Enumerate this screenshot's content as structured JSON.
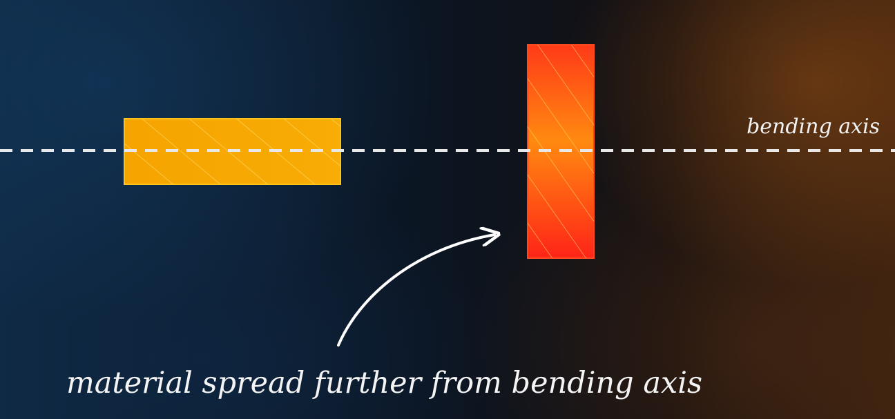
{
  "labels": {
    "axis": "bending axis",
    "caption": "material spread further from bending axis"
  },
  "colors": {
    "axis_line": "#e8e8e8",
    "flat_beam_fill": "#f7a500",
    "flat_beam_stroke": "#ffc21a",
    "upright_beam_top": "#ff7a10",
    "upright_beam_bottom": "#ff2a1a",
    "upright_beam_stroke": "#ff4a20",
    "hatch": "#ffe27a",
    "arrow": "#ffffff",
    "text": "#f2f2f2"
  },
  "icons": {
    "arrow": "curved-arrow-icon"
  }
}
